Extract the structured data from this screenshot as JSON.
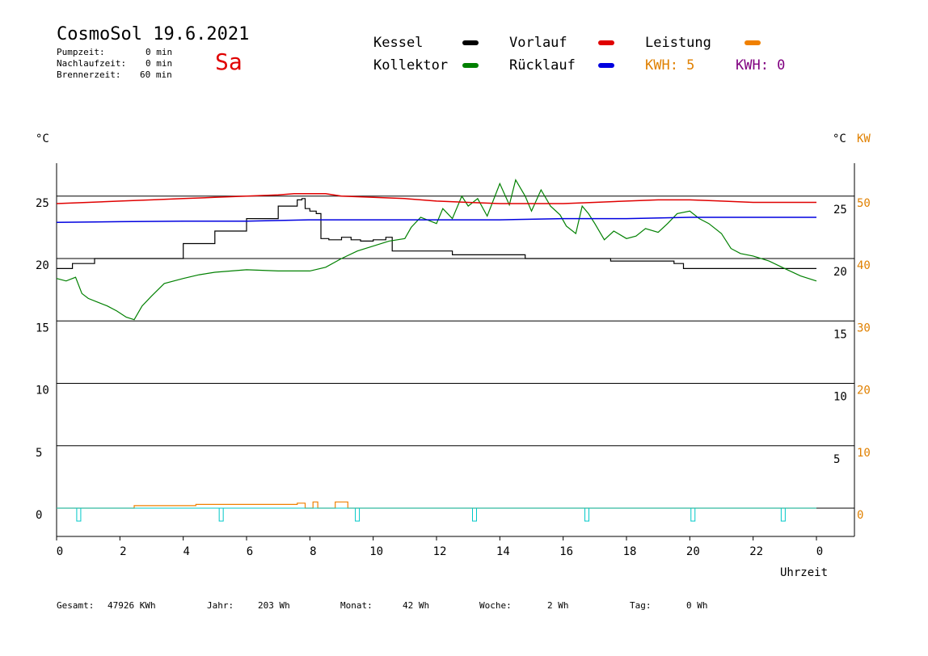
{
  "header": {
    "title": "CosmoSol 19.6.2021",
    "day": "Sa",
    "stats": [
      {
        "label": "Pumpzeit:",
        "value": "0 min"
      },
      {
        "label": "Nachlaufzeit:",
        "value": "0 min"
      },
      {
        "label": "Brennerzeit:",
        "value": "60 min"
      }
    ]
  },
  "legend": {
    "kessel": "Kessel",
    "kollektor": "Kollektor",
    "vorlauf": "Vorlauf",
    "ruecklauf": "Rücklauf",
    "leistung": "Leistung",
    "kwh1": "KWH: 5",
    "kwh2": "KWH: 0"
  },
  "axes": {
    "left_unit": "°C",
    "right_unit": "°C",
    "right_unit2": "KW",
    "xlabel": "Uhrzeit"
  },
  "footer": [
    {
      "label": "Gesamt:",
      "value": "47926 KWh"
    },
    {
      "label": "Jahr:",
      "value": "203 Wh"
    },
    {
      "label": "Monat:",
      "value": "42 Wh"
    },
    {
      "label": "Woche:",
      "value": "2 Wh"
    },
    {
      "label": "Tag:",
      "value": "0 Wh"
    }
  ],
  "colors": {
    "kessel": "#000000",
    "kollektor": "#008000",
    "vorlauf": "#e00000",
    "ruecklauf": "#0000e0",
    "leistung": "#f08000",
    "kwh2": "#800080",
    "pump": "#00c8c8"
  },
  "chart_data": {
    "type": "line",
    "xlabel": "Uhrzeit",
    "ylabel": "°C",
    "ylabel_right": "KW",
    "xlim": [
      0,
      24
    ],
    "ylim": [
      -1.8,
      27.5
    ],
    "y2lim": [
      -3.6,
      55
    ],
    "x_ticks": [
      "0",
      "2",
      "4",
      "6",
      "8",
      "10",
      "12",
      "14",
      "16",
      "18",
      "20",
      "22",
      "0"
    ],
    "y_left_ticks": [
      0,
      5,
      10,
      15,
      20,
      25
    ],
    "y_right_ticks": [
      5,
      10,
      15,
      20,
      25
    ],
    "y2_ticks": [
      0,
      10,
      20,
      30,
      40,
      50
    ],
    "grid_y": [
      0,
      5,
      10,
      15,
      20,
      25
    ],
    "legend_position": "top",
    "series": [
      {
        "name": "Kessel",
        "x": [
          0,
          0.5,
          1.2,
          2.8,
          4.0,
          5.0,
          6.0,
          7.0,
          7.6,
          7.75,
          7.85,
          8.0,
          8.2,
          8.35,
          8.6,
          9.0,
          9.3,
          9.6,
          10.0,
          10.4,
          10.6,
          11.0,
          12.0,
          12.5,
          13.0,
          14.0,
          14.8,
          16.0,
          17.5,
          18.0,
          19.0,
          19.5,
          19.8,
          21.0,
          22.0,
          24.0
        ],
        "values": [
          19.2,
          19.6,
          20.0,
          20.0,
          21.2,
          22.2,
          23.2,
          24.2,
          24.7,
          24.8,
          24.0,
          23.8,
          23.6,
          21.6,
          21.5,
          21.7,
          21.5,
          21.4,
          21.5,
          21.7,
          20.6,
          20.6,
          20.6,
          20.3,
          20.3,
          20.3,
          20.0,
          20.0,
          19.8,
          19.8,
          19.8,
          19.6,
          19.2,
          19.2,
          19.2,
          19.2
        ]
      },
      {
        "name": "Kollektor",
        "x": [
          0,
          0.3,
          0.6,
          0.8,
          1.0,
          1.3,
          1.6,
          1.9,
          2.2,
          2.45,
          2.7,
          3.0,
          3.4,
          4.0,
          4.5,
          5.0,
          6.0,
          7.0,
          8.0,
          8.5,
          9.0,
          9.5,
          10.0,
          10.5,
          11.0,
          11.2,
          11.5,
          12.0,
          12.2,
          12.5,
          12.8,
          13.0,
          13.3,
          13.6,
          14.0,
          14.3,
          14.5,
          14.8,
          15.0,
          15.3,
          15.6,
          15.9,
          16.1,
          16.4,
          16.6,
          16.8,
          17.0,
          17.3,
          17.6,
          18.0,
          18.3,
          18.6,
          19.0,
          19.3,
          19.6,
          20.0,
          20.3,
          20.6,
          21.0,
          21.3,
          21.6,
          22.0,
          22.5,
          23.0,
          23.5,
          24.0
        ],
        "values": [
          18.4,
          18.2,
          18.5,
          17.2,
          16.8,
          16.5,
          16.2,
          15.8,
          15.3,
          15.1,
          16.2,
          17.0,
          18.0,
          18.4,
          18.7,
          18.9,
          19.1,
          19.0,
          19.0,
          19.3,
          20.0,
          20.6,
          21.0,
          21.4,
          21.6,
          22.5,
          23.3,
          22.8,
          24.0,
          23.2,
          25.0,
          24.2,
          24.8,
          23.4,
          26.0,
          24.3,
          26.3,
          25.0,
          23.8,
          25.5,
          24.2,
          23.5,
          22.6,
          22.0,
          24.2,
          23.6,
          22.8,
          21.5,
          22.2,
          21.6,
          21.8,
          22.4,
          22.1,
          22.8,
          23.6,
          23.8,
          23.2,
          22.8,
          22.0,
          20.8,
          20.4,
          20.2,
          19.8,
          19.2,
          18.6,
          18.2
        ]
      },
      {
        "name": "Vorlauf",
        "x": [
          0,
          1,
          2,
          3,
          4,
          5,
          6,
          7,
          7.5,
          8.0,
          8.5,
          9,
          10,
          11,
          12,
          13,
          14,
          15,
          16,
          17,
          18,
          19,
          19.5,
          20,
          21,
          22,
          23,
          24
        ],
        "values": [
          24.4,
          24.5,
          24.6,
          24.7,
          24.8,
          24.9,
          25.0,
          25.1,
          25.2,
          25.2,
          25.2,
          25.0,
          24.9,
          24.8,
          24.6,
          24.5,
          24.4,
          24.4,
          24.4,
          24.5,
          24.6,
          24.7,
          24.7,
          24.7,
          24.6,
          24.5,
          24.5,
          24.5
        ]
      },
      {
        "name": "Rücklauf",
        "x": [
          0,
          2,
          4,
          6,
          8,
          10,
          12,
          14,
          16,
          18,
          20,
          22,
          24
        ],
        "values": [
          22.9,
          22.95,
          23.0,
          23.0,
          23.1,
          23.1,
          23.1,
          23.1,
          23.2,
          23.2,
          23.3,
          23.3,
          23.3
        ]
      },
      {
        "name": "Leistung",
        "x": [
          0,
          2.45,
          2.45,
          4.4,
          4.4,
          7.6,
          7.6,
          7.85,
          7.85,
          8.1,
          8.1,
          8.25,
          8.25,
          8.8,
          8.8,
          9.2,
          9.2,
          24
        ],
        "values": [
          0,
          0,
          0.2,
          0.2,
          0.3,
          0.3,
          0.4,
          0.4,
          0,
          0,
          0.5,
          0.5,
          0,
          0,
          0.5,
          0.5,
          0,
          0
        ]
      }
    ],
    "pump_events": [
      0.7,
      5.2,
      9.5,
      13.2,
      16.75,
      20.1,
      22.95
    ]
  }
}
